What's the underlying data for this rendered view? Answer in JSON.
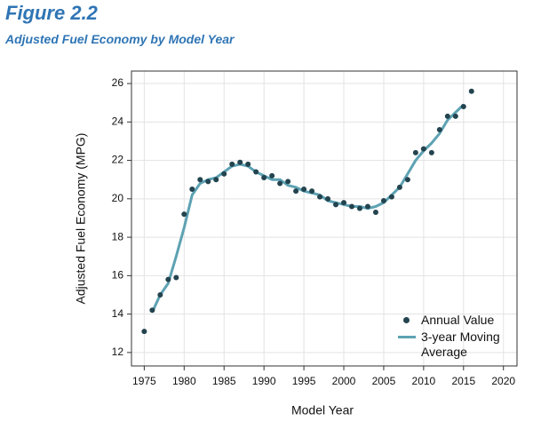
{
  "chart_data": {
    "type": "scatter",
    "title": "Figure 2.2",
    "subtitle": "Adjusted Fuel Economy by Model Year",
    "x_label": "Model Year",
    "y_label": "Adjusted Fuel Economy (MPG)",
    "xlim": [
      1973.4,
      2021.7
    ],
    "ylim": [
      11.3,
      26.65
    ],
    "xticks": [
      1975,
      1980,
      1985,
      1990,
      1995,
      2000,
      2005,
      2010,
      2015,
      2020
    ],
    "yticks": [
      12,
      14,
      16,
      18,
      20,
      22,
      24,
      26
    ],
    "grid": true,
    "legend": "lower right",
    "series": [
      {
        "name": "Annual Value",
        "type": "scatter",
        "color": "#23444f",
        "x": [
          1975,
          1976,
          1977,
          1978,
          1979,
          1980,
          1981,
          1982,
          1983,
          1984,
          1985,
          1986,
          1987,
          1988,
          1989,
          1990,
          1991,
          1992,
          1993,
          1994,
          1995,
          1996,
          1997,
          1998,
          1999,
          2000,
          2001,
          2002,
          2003,
          2004,
          2005,
          2006,
          2007,
          2008,
          2009,
          2010,
          2011,
          2012,
          2013,
          2014,
          2015,
          2016
        ],
        "values": [
          13.1,
          14.2,
          15.0,
          15.8,
          15.9,
          19.2,
          20.5,
          21.0,
          20.9,
          21.0,
          21.3,
          21.8,
          21.9,
          21.8,
          21.4,
          21.1,
          21.2,
          20.8,
          20.9,
          20.4,
          20.5,
          20.4,
          20.1,
          20.0,
          19.7,
          19.8,
          19.6,
          19.5,
          19.6,
          19.3,
          19.9,
          20.1,
          20.6,
          21.0,
          22.4,
          22.6,
          22.4,
          23.6,
          24.3,
          24.3,
          24.8,
          25.6
        ]
      },
      {
        "name": "3-year Moving Average",
        "type": "line",
        "color": "#5da2b3",
        "x": [
          1976,
          1977,
          1978,
          1979,
          1980,
          1981,
          1982,
          1983,
          1984,
          1985,
          1986,
          1987,
          1988,
          1989,
          1990,
          1991,
          1992,
          1993,
          1994,
          1995,
          1996,
          1997,
          1998,
          1999,
          2000,
          2001,
          2002,
          2003,
          2004,
          2005,
          2006,
          2007,
          2008,
          2009,
          2010,
          2011,
          2012,
          2013,
          2014,
          2015
        ],
        "values": [
          14.1,
          15.0,
          15.6,
          17.0,
          18.5,
          20.2,
          20.8,
          21.0,
          21.1,
          21.4,
          21.7,
          21.8,
          21.7,
          21.4,
          21.2,
          21.0,
          21.0,
          20.7,
          20.6,
          20.4,
          20.3,
          20.2,
          19.9,
          19.8,
          19.7,
          19.6,
          19.6,
          19.5,
          19.6,
          19.8,
          20.2,
          20.6,
          21.3,
          22.0,
          22.5,
          22.9,
          23.4,
          24.1,
          24.5,
          24.9
        ]
      }
    ]
  }
}
